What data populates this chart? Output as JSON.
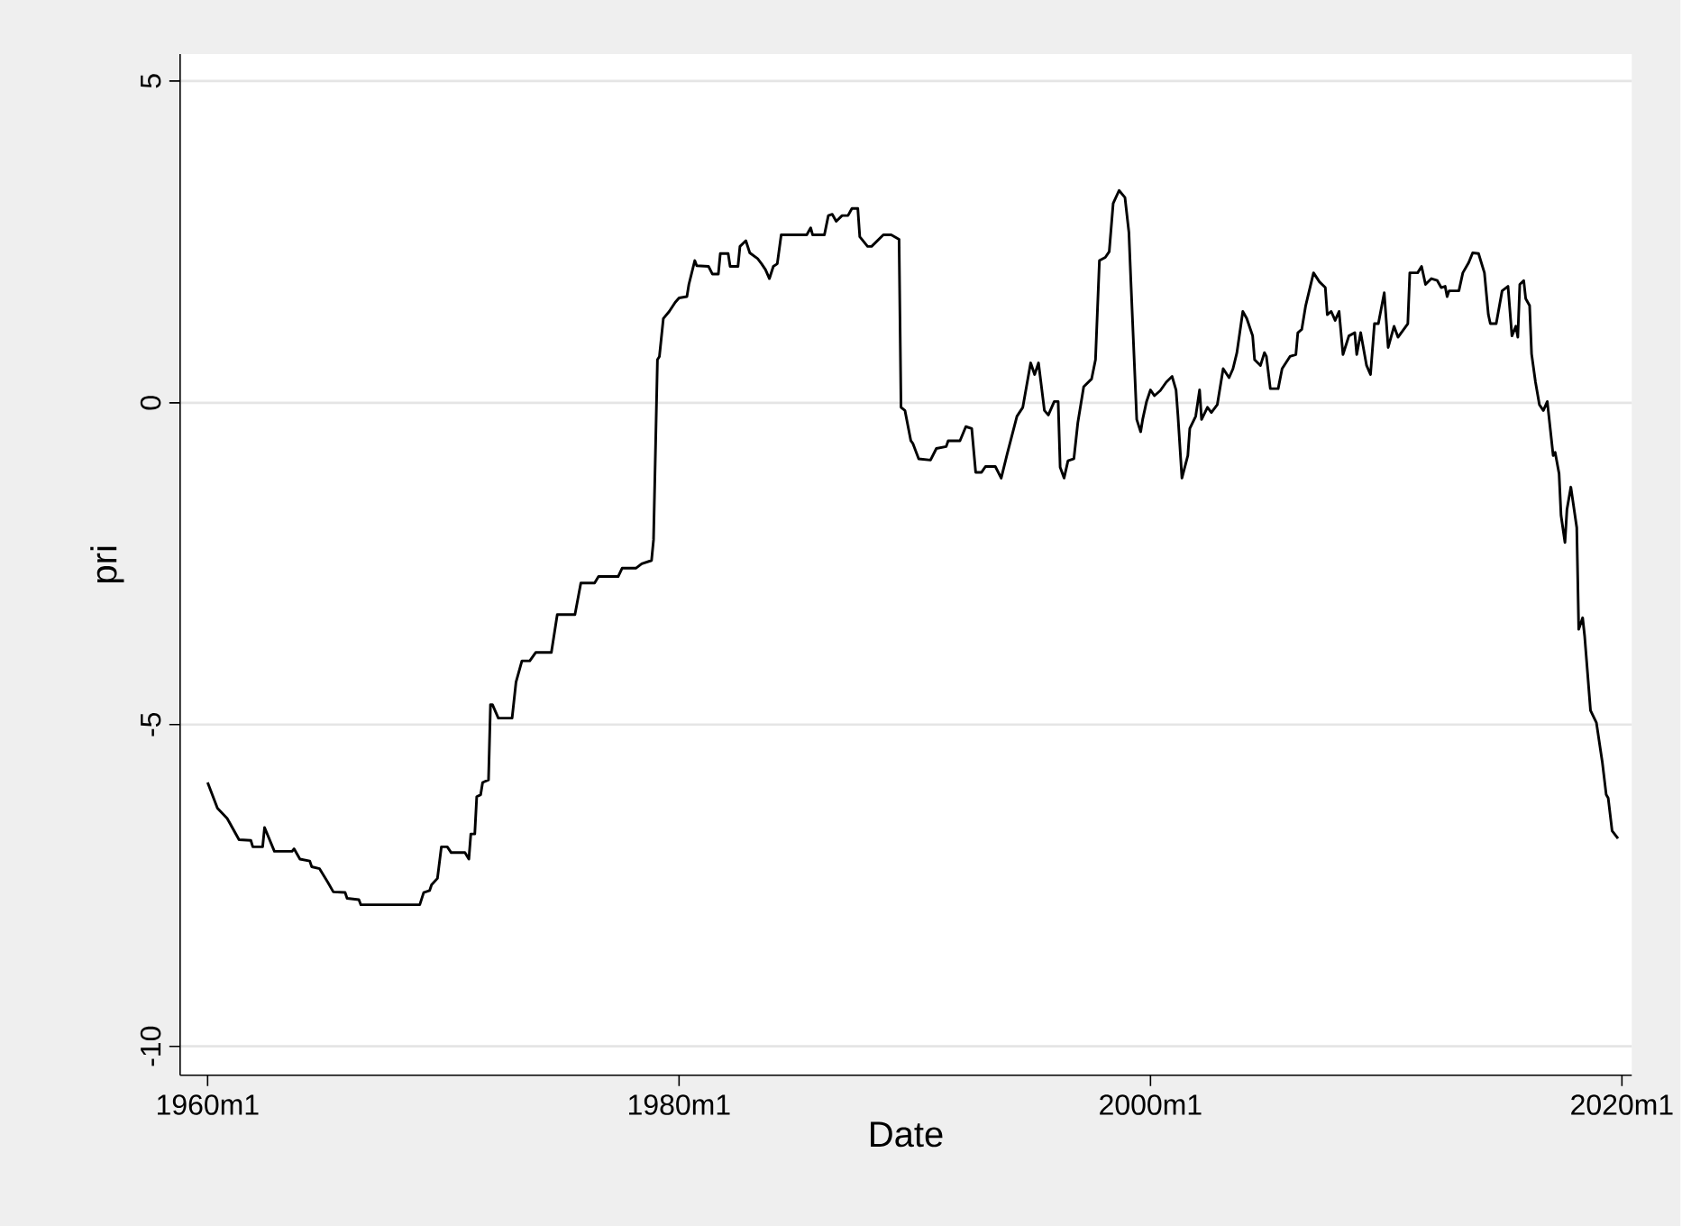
{
  "chart_data": {
    "type": "line",
    "xlabel": "Date",
    "ylabel": "pri",
    "color": "#000000",
    "grid": "y",
    "xlim": [
      "1958-11",
      "2020-06"
    ],
    "ylim": [
      -10.45,
      5.42
    ],
    "xticks": [
      {
        "value": "1960-01",
        "label": "1960m1"
      },
      {
        "value": "1980-01",
        "label": "1980m1"
      },
      {
        "value": "2000-01",
        "label": "2000m1"
      },
      {
        "value": "2020-01",
        "label": "2020m1"
      }
    ],
    "yticks": [
      -10,
      -5,
      0,
      5
    ],
    "x": [
      "1960-01",
      "1960-06",
      "1960-11",
      "1961-05",
      "1961-11",
      "1961-12",
      "1962-05",
      "1962-06",
      "1962-11",
      "1963-08",
      "1963-09",
      "1963-12",
      "1964-05",
      "1964-06",
      "1964-10",
      "1965-02",
      "1965-05",
      "1965-11",
      "1965-12",
      "1966-06",
      "1966-07",
      "1969-01",
      "1969-03",
      "1969-06",
      "1969-07",
      "1969-10",
      "1969-12",
      "1970-03",
      "1970-05",
      "1970-12",
      "1971-02",
      "1971-03",
      "1971-05",
      "1971-06",
      "1971-08",
      "1971-09",
      "1971-12",
      "1972-01",
      "1972-02",
      "1972-05",
      "1972-12",
      "1973-02",
      "1973-05",
      "1973-09",
      "1973-12",
      "1974-08",
      "1974-11",
      "1975-08",
      "1975-11",
      "1976-06",
      "1976-08",
      "1977-06",
      "1977-08",
      "1978-03",
      "1978-06",
      "1978-11",
      "1978-12",
      "1979-02",
      "1979-03",
      "1979-05",
      "1979-08",
      "1979-11",
      "1980-01",
      "1980-05",
      "1980-06",
      "1980-09",
      "1980-10",
      "1981-04",
      "1981-06",
      "1981-09",
      "1981-10",
      "1982-02",
      "1982-03",
      "1982-07",
      "1982-08",
      "1982-11",
      "1983-01",
      "1983-05",
      "1983-07",
      "1983-09",
      "1983-11",
      "1984-01",
      "1984-03",
      "1984-05",
      "1985-06",
      "1985-08",
      "1985-09",
      "1986-03",
      "1986-05",
      "1986-07",
      "1986-09",
      "1986-12",
      "1987-03",
      "1987-05",
      "1987-08",
      "1987-09",
      "1988-01",
      "1988-03",
      "1988-09",
      "1989-01",
      "1989-05",
      "1989-06",
      "1989-08",
      "1989-11",
      "1989-12",
      "1990-03",
      "1990-09",
      "1990-12",
      "1991-05",
      "1991-06",
      "1991-12",
      "1992-03",
      "1992-06",
      "1992-08",
      "1992-11",
      "1993-01",
      "1993-06",
      "1993-09",
      "1993-12",
      "1994-05",
      "1994-08",
      "1994-12",
      "1995-02",
      "1995-04",
      "1995-07",
      "1995-09",
      "1995-12",
      "1996-02",
      "1996-03",
      "1996-05",
      "1996-07",
      "1996-10",
      "1996-12",
      "1997-03",
      "1997-07",
      "1997-09",
      "1997-11",
      "1998-02",
      "1998-04",
      "1998-06",
      "1998-09",
      "1998-12",
      "1999-02",
      "1999-03",
      "1999-06",
      "1999-08",
      "1999-09",
      "1999-11",
      "2000-01",
      "2000-03",
      "2000-06",
      "2000-09",
      "2000-12",
      "2001-02",
      "2001-03",
      "2001-05",
      "2001-08",
      "2001-09",
      "2001-12",
      "2002-02",
      "2002-03",
      "2002-06",
      "2002-08",
      "2002-11",
      "2003-02",
      "2003-05",
      "2003-07",
      "2003-09",
      "2003-12",
      "2004-02",
      "2004-05",
      "2004-06",
      "2004-09",
      "2004-11",
      "2004-12",
      "2005-02",
      "2005-06",
      "2005-08",
      "2005-12",
      "2006-03",
      "2006-04",
      "2006-06",
      "2006-08",
      "2006-12",
      "2007-03",
      "2007-06",
      "2007-07",
      "2007-09",
      "2007-11",
      "2008-01",
      "2008-03",
      "2008-06",
      "2008-09",
      "2008-10",
      "2008-12",
      "2009-03",
      "2009-05",
      "2009-07",
      "2009-09",
      "2009-12",
      "2010-02",
      "2010-05",
      "2010-07",
      "2010-12",
      "2011-01",
      "2011-05",
      "2011-07",
      "2011-09",
      "2011-12",
      "2012-03",
      "2012-05",
      "2012-07",
      "2012-08",
      "2012-09",
      "2013-02",
      "2013-04",
      "2013-07",
      "2013-09",
      "2013-12",
      "2014-03",
      "2014-05",
      "2014-06",
      "2014-09",
      "2014-12",
      "2015-03",
      "2015-05",
      "2015-07",
      "2015-08",
      "2015-09",
      "2015-11",
      "2015-12",
      "2016-02",
      "2016-03",
      "2016-05",
      "2016-07",
      "2016-09",
      "2016-11",
      "2016-12",
      "2017-02",
      "2017-03",
      "2017-05",
      "2017-06",
      "2017-08",
      "2017-09",
      "2017-11",
      "2018-02",
      "2018-03",
      "2018-05",
      "2018-06",
      "2018-09",
      "2018-12",
      "2019-03",
      "2019-05",
      "2019-06",
      "2019-08",
      "2019-11"
    ],
    "values": [
      -5.9,
      -6.3,
      -6.46,
      -6.79,
      -6.8,
      -6.9,
      -6.9,
      -6.6,
      -6.97,
      -6.97,
      -6.93,
      -7.09,
      -7.12,
      -7.21,
      -7.24,
      -7.44,
      -7.6,
      -7.61,
      -7.7,
      -7.72,
      -7.8,
      -7.8,
      -7.61,
      -7.58,
      -7.49,
      -7.39,
      -6.9,
      -6.9,
      -6.99,
      -6.99,
      -7.09,
      -6.7,
      -6.7,
      -6.12,
      -6.09,
      -5.9,
      -5.86,
      -4.69,
      -4.69,
      -4.9,
      -4.9,
      -4.34,
      -4.01,
      -4.01,
      -3.88,
      -3.88,
      -3.29,
      -3.29,
      -2.8,
      -2.8,
      -2.7,
      -2.7,
      -2.57,
      -2.57,
      -2.5,
      -2.45,
      -2.13,
      0.67,
      0.72,
      1.31,
      1.42,
      1.56,
      1.63,
      1.65,
      1.84,
      2.21,
      2.13,
      2.12,
      2.0,
      2.0,
      2.32,
      2.32,
      2.12,
      2.12,
      2.43,
      2.52,
      2.33,
      2.24,
      2.16,
      2.07,
      1.93,
      2.12,
      2.16,
      2.61,
      2.61,
      2.72,
      2.61,
      2.61,
      2.91,
      2.93,
      2.82,
      2.91,
      2.91,
      3.02,
      3.02,
      2.58,
      2.43,
      2.43,
      2.61,
      2.61,
      2.54,
      -0.07,
      -0.12,
      -0.59,
      -0.63,
      -0.87,
      -0.89,
      -0.71,
      -0.68,
      -0.59,
      -0.59,
      -0.37,
      -0.4,
      -1.08,
      -1.08,
      -0.99,
      -0.99,
      -1.17,
      -0.8,
      -0.21,
      -0.07,
      0.62,
      0.44,
      0.62,
      -0.12,
      -0.19,
      0.02,
      0.02,
      -1.0,
      -1.17,
      -0.9,
      -0.87,
      -0.31,
      0.25,
      0.37,
      0.67,
      2.21,
      2.26,
      2.35,
      3.1,
      3.3,
      3.19,
      2.65,
      1.9,
      -0.26,
      -0.45,
      -0.26,
      0.02,
      0.2,
      0.11,
      0.19,
      0.32,
      0.41,
      0.2,
      -0.21,
      -1.17,
      -0.82,
      -0.4,
      -0.21,
      0.2,
      -0.26,
      -0.07,
      -0.15,
      -0.03,
      0.53,
      0.39,
      0.53,
      0.78,
      1.42,
      1.31,
      1.04,
      0.67,
      0.58,
      0.78,
      0.72,
      0.22,
      0.22,
      0.53,
      0.72,
      0.75,
      1.09,
      1.14,
      1.51,
      2.02,
      1.88,
      1.79,
      1.37,
      1.42,
      1.28,
      1.42,
      0.75,
      1.04,
      1.09,
      0.75,
      1.09,
      0.58,
      0.44,
      1.23,
      1.23,
      1.71,
      0.86,
      1.19,
      1.02,
      1.23,
      2.02,
      2.02,
      2.12,
      1.84,
      1.93,
      1.9,
      1.79,
      1.81,
      1.65,
      1.74,
      1.74,
      2.02,
      2.18,
      2.33,
      2.32,
      2.02,
      1.37,
      1.23,
      1.23,
      1.74,
      1.81,
      1.04,
      1.19,
      1.02,
      1.84,
      1.9,
      1.62,
      1.51,
      0.76,
      0.32,
      -0.03,
      -0.12,
      0.02,
      -0.26,
      -0.82,
      -0.77,
      -1.1,
      -1.75,
      -2.17,
      -1.66,
      -1.31,
      -1.94,
      -3.52,
      -3.34,
      -3.62,
      -4.78,
      -4.97,
      -5.58,
      -6.09,
      -6.14,
      -6.65,
      -6.77
    ]
  }
}
